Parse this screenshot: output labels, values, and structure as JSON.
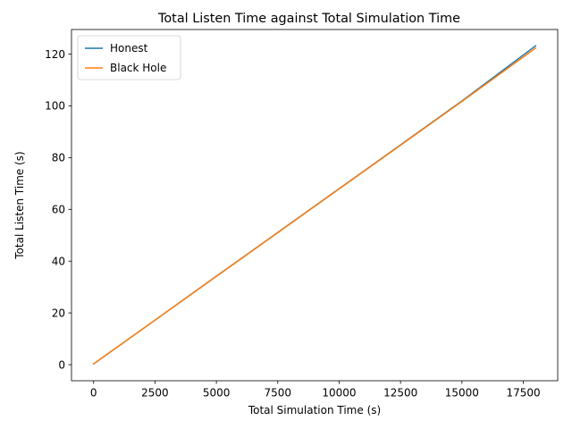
{
  "chart_data": {
    "type": "line",
    "title": "Total Listen Time against Total Simulation Time",
    "xlabel": "Total Simulation Time (s)",
    "ylabel": "Total Listen Time (s)",
    "xlim": [
      -900,
      18900
    ],
    "ylim": [
      -6.2,
      129.5
    ],
    "xticks": [
      0,
      2500,
      5000,
      7500,
      10000,
      12500,
      15000,
      17500
    ],
    "yticks": [
      0,
      20,
      40,
      60,
      80,
      100,
      120
    ],
    "grid": false,
    "legend": "top-left",
    "series": [
      {
        "name": "Honest",
        "color": "#1f77b4",
        "x": [
          0,
          2500,
          5000,
          7500,
          10000,
          12500,
          15000,
          18000
        ],
        "y": [
          0.3,
          17.2,
          34.2,
          51.1,
          68.0,
          84.9,
          101.9,
          123.2
        ]
      },
      {
        "name": "Black Hole",
        "color": "#ff7f0e",
        "x": [
          0,
          2500,
          5000,
          7500,
          10000,
          12500,
          15000,
          18000
        ],
        "y": [
          0.3,
          17.2,
          34.1,
          51.0,
          67.9,
          84.8,
          101.7,
          122.3
        ]
      }
    ]
  }
}
